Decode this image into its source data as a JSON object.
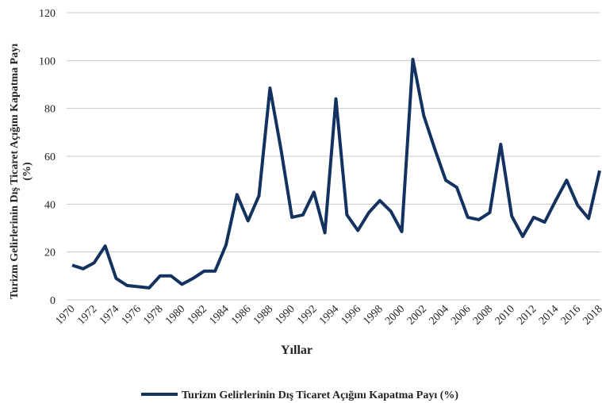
{
  "chart_data": {
    "type": "line",
    "ylabel": [
      "Turizm Gelirlerinin Dış Ticaret Açığını Kapatma Payı",
      "(%)"
    ],
    "xlabel": "Yıllar",
    "categories": [
      "1970",
      null,
      "1972",
      null,
      "1974",
      null,
      "1976",
      null,
      "1978",
      null,
      "1980",
      null,
      "1982",
      null,
      "1984",
      null,
      "1986",
      null,
      "1988",
      null,
      "1990",
      null,
      "1992",
      null,
      "1994",
      null,
      "1996",
      null,
      "1998",
      null,
      "2000",
      null,
      "2002",
      null,
      "2004",
      null,
      "2006",
      null,
      "2008",
      null,
      "2010",
      null,
      "2012",
      null,
      "2014",
      null,
      "2016",
      null,
      "2018"
    ],
    "series": [
      {
        "name": "Turizm Gelirlerinin Dış Ticaret Açığını Kapatma Payı (%)",
        "color": "#14325f",
        "values": [
          14.5,
          13,
          15.5,
          22.5,
          9,
          6,
          5.5,
          5,
          10,
          10,
          6.5,
          9,
          12,
          12,
          23,
          44,
          33,
          43.5,
          88.5,
          63,
          34.5,
          35.5,
          45,
          28,
          84,
          35.5,
          29,
          36.5,
          41.5,
          37,
          28.5,
          100.5,
          77,
          63,
          50,
          47,
          34.5,
          33.5,
          36.5,
          65,
          35,
          26.5,
          34.5,
          32.5,
          41.5,
          50,
          39.5,
          34,
          54
        ]
      }
    ],
    "ylim": [
      0,
      120
    ],
    "yticks": [
      0,
      20,
      40,
      60,
      80,
      100,
      120
    ],
    "grid": true,
    "legend": "bottom"
  }
}
